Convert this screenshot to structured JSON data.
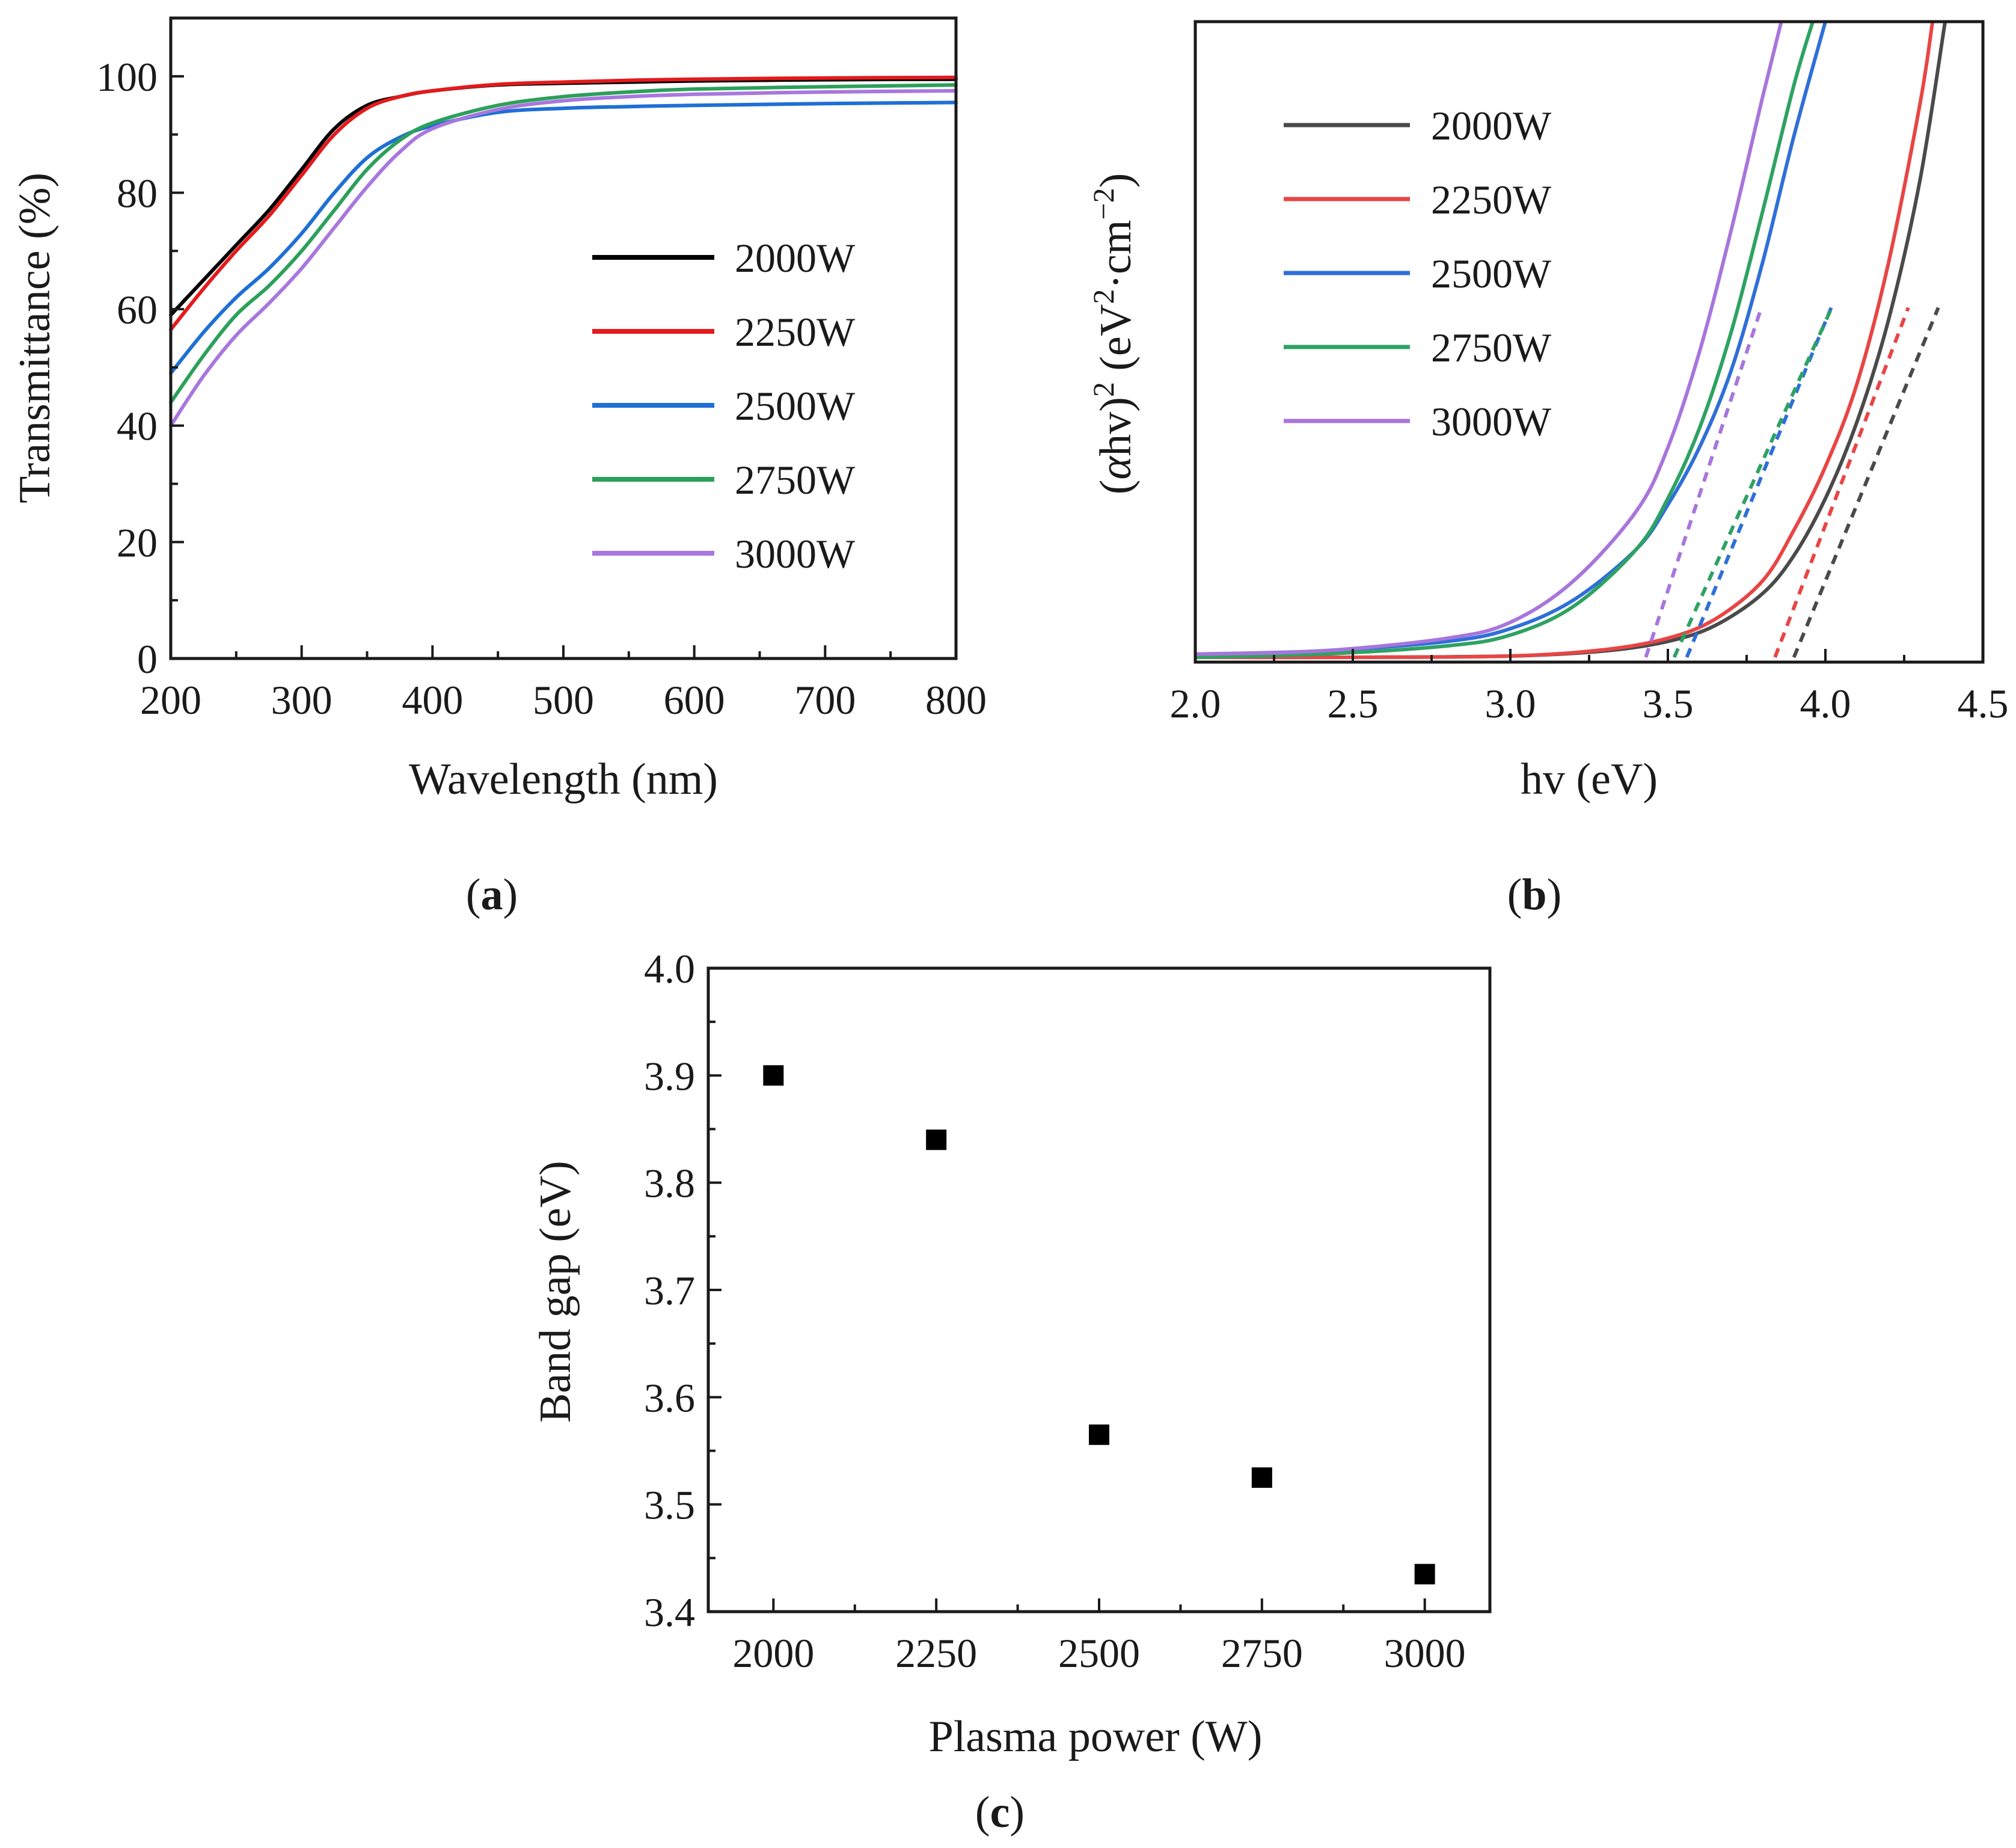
{
  "chart_data": [
    {
      "panel": "a",
      "type": "line",
      "panel_label": "a",
      "title": "",
      "xlabel": "Wavelength (nm)",
      "ylabel": "Transmittance (%)",
      "xlim": [
        200,
        800
      ],
      "ylim": [
        0,
        110
      ],
      "xticks": [
        200,
        300,
        400,
        500,
        600,
        700,
        800
      ],
      "yticks": [
        0,
        20,
        40,
        60,
        80,
        100
      ],
      "legend_position": "center-right",
      "series": [
        {
          "name": "2000W",
          "color": "#000000",
          "x": [
            200,
            225,
            250,
            275,
            300,
            325,
            350,
            375,
            400,
            450,
            500,
            550,
            600,
            700,
            800
          ],
          "y": [
            59,
            65,
            71,
            77,
            84,
            91,
            95,
            96.5,
            97.5,
            98.5,
            98.8,
            99,
            99.2,
            99.4,
            99.5
          ]
        },
        {
          "name": "2250W",
          "color": "#e41a1c",
          "x": [
            200,
            225,
            250,
            275,
            300,
            325,
            350,
            375,
            400,
            450,
            500,
            550,
            600,
            700,
            800
          ],
          "y": [
            56.5,
            63.5,
            70,
            76,
            83,
            90,
            94.5,
            96.5,
            97.5,
            98.6,
            99,
            99.3,
            99.5,
            99.7,
            99.8
          ]
        },
        {
          "name": "2500W",
          "color": "#1f6fd6",
          "x": [
            200,
            225,
            250,
            275,
            300,
            325,
            350,
            375,
            400,
            450,
            500,
            550,
            600,
            700,
            800
          ],
          "y": [
            49,
            56,
            62,
            67,
            73,
            80,
            86,
            89.5,
            91.5,
            93.8,
            94.5,
            94.8,
            95,
            95.3,
            95.5
          ]
        },
        {
          "name": "2750W",
          "color": "#2ca05a",
          "x": [
            200,
            225,
            250,
            275,
            300,
            325,
            350,
            375,
            400,
            450,
            500,
            550,
            600,
            700,
            800
          ],
          "y": [
            44,
            52,
            59,
            64,
            70,
            77,
            84,
            89,
            92,
            95,
            96.5,
            97.3,
            97.8,
            98.2,
            98.5
          ]
        },
        {
          "name": "3000W",
          "color": "#a877de",
          "x": [
            200,
            225,
            250,
            275,
            300,
            325,
            350,
            375,
            400,
            450,
            500,
            550,
            600,
            700,
            800
          ],
          "y": [
            40,
            48.5,
            55.5,
            61,
            67,
            74,
            81,
            87,
            91,
            94.3,
            95.8,
            96.5,
            96.9,
            97.3,
            97.5
          ]
        }
      ]
    },
    {
      "panel": "b",
      "type": "line",
      "panel_label": "b",
      "title": "",
      "xlabel": "hv (eV)",
      "ylabel": "(αhv)² (eV²·cm⁻²)",
      "xlim": [
        2.0,
        4.5
      ],
      "ylim": [
        0,
        1
      ],
      "xticks": [
        2.0,
        2.5,
        3.0,
        3.5,
        4.0,
        4.5
      ],
      "tick_labels": [
        "2.0",
        "2.5",
        "3.0",
        "3.5",
        "4.0",
        "4.5"
      ],
      "legend_position": "top-left",
      "series": [
        {
          "name": "2000W",
          "color": "#4a4a4a",
          "band_gap": 3.9,
          "x": [
            2.0,
            2.5,
            3.0,
            3.3,
            3.5,
            3.65,
            3.8,
            3.9,
            4.0,
            4.1,
            4.2,
            4.3,
            4.38
          ],
          "y": [
            0,
            0,
            0.002,
            0.01,
            0.025,
            0.05,
            0.1,
            0.16,
            0.25,
            0.37,
            0.53,
            0.75,
            1.0
          ]
        },
        {
          "name": "2250W",
          "color": "#e84545",
          "band_gap": 3.84,
          "x": [
            2.0,
            2.5,
            3.0,
            3.3,
            3.5,
            3.65,
            3.8,
            3.9,
            4.0,
            4.1,
            4.2,
            4.3,
            4.34
          ],
          "y": [
            0,
            0,
            0.002,
            0.012,
            0.03,
            0.06,
            0.12,
            0.2,
            0.3,
            0.43,
            0.62,
            0.87,
            1.0
          ]
        },
        {
          "name": "2500W",
          "color": "#2f6fd8",
          "band_gap": 3.56,
          "x": [
            2.0,
            2.4,
            2.8,
            3.0,
            3.2,
            3.4,
            3.5,
            3.6,
            3.7,
            3.8,
            3.9,
            4.0
          ],
          "y": [
            0.005,
            0.01,
            0.025,
            0.045,
            0.09,
            0.17,
            0.24,
            0.33,
            0.45,
            0.62,
            0.82,
            1.0
          ]
        },
        {
          "name": "2750W",
          "color": "#2ea263",
          "band_gap": 3.52,
          "x": [
            2.0,
            2.4,
            2.8,
            3.0,
            3.2,
            3.4,
            3.5,
            3.6,
            3.7,
            3.8,
            3.9,
            3.96
          ],
          "y": [
            0,
            0.005,
            0.018,
            0.035,
            0.08,
            0.17,
            0.25,
            0.36,
            0.51,
            0.7,
            0.9,
            1.0
          ]
        },
        {
          "name": "3000W",
          "color": "#a875dc",
          "band_gap": 3.43,
          "x": [
            2.0,
            2.4,
            2.8,
            3.0,
            3.2,
            3.4,
            3.5,
            3.6,
            3.7,
            3.8,
            3.86
          ],
          "y": [
            0.005,
            0.01,
            0.03,
            0.055,
            0.12,
            0.23,
            0.33,
            0.48,
            0.67,
            0.88,
            1.0
          ]
        }
      ]
    },
    {
      "panel": "c",
      "type": "scatter",
      "panel_label": "c",
      "title": "",
      "xlabel": "Plasma power (W)",
      "ylabel": "Band gap (eV)",
      "xlim": [
        1900,
        3100
      ],
      "ylim": [
        3.4,
        4.0
      ],
      "xticks": [
        2000,
        2250,
        2500,
        2750,
        3000
      ],
      "yticks": [
        3.4,
        3.5,
        3.6,
        3.7,
        3.8,
        3.9,
        4.0
      ],
      "tick_labels_y": [
        "3.4",
        "3.5",
        "3.6",
        "3.7",
        "3.8",
        "3.9",
        "4.0"
      ],
      "x": [
        2000,
        2250,
        2500,
        2750,
        3000
      ],
      "y": [
        3.9,
        3.84,
        3.565,
        3.525,
        3.435
      ],
      "marker": "square",
      "color": "#000000"
    }
  ]
}
